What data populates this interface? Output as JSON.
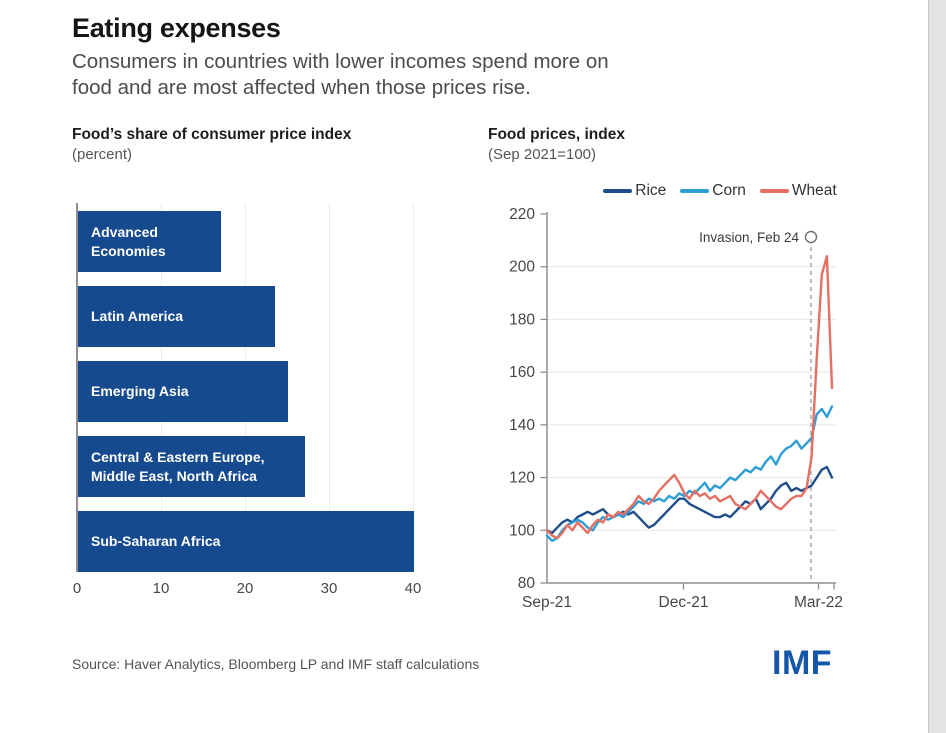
{
  "page": {
    "title": "Eating expenses",
    "subtitle_lines": [
      "Consumers in countries with lower incomes spend more on",
      "food and are most affected when those prices rise."
    ],
    "source": "Source: Haver Analytics, Bloomberg LP and IMF staff calculations",
    "logo_text": "IMF"
  },
  "colors": {
    "bar_blue": "#164a8f",
    "rice": "#1f4e8a",
    "corn": "#2d9dd6",
    "wheat": "#e56f62",
    "grid": "#e7e7e7",
    "axis": "#8f8f8f",
    "dashed": "#9b9b9b",
    "tick_text": "#474747",
    "annotation_text": "#3a3a3a",
    "logo_blue": "#1457a8",
    "gutter": "#e3e3e4"
  },
  "chart_data": [
    {
      "type": "bar",
      "title": "Food’s share of consumer price index",
      "subtitle": "(percent)",
      "orientation": "horizontal",
      "categories": [
        "Advanced Economies",
        "Latin America",
        "Emerging Asia",
        "Central & Eastern Europe, Middle East, North Africa",
        "Sub-Saharan Africa"
      ],
      "labels_lines": [
        [
          "Advanced",
          "Economies"
        ],
        [
          "Latin America"
        ],
        [
          "Emerging Asia"
        ],
        [
          "Central & Eastern Europe,",
          "Middle East, North Africa"
        ],
        [
          "Sub-Saharan Africa"
        ]
      ],
      "values": [
        17,
        23.5,
        25,
        27,
        40
      ],
      "xlim": [
        0,
        40
      ],
      "x_ticks": [
        0,
        10,
        20,
        30,
        40
      ],
      "grid": true,
      "bar_color_key": "bar_blue"
    },
    {
      "type": "line",
      "title": "Food prices, index",
      "subtitle": "(Sep 2021=100)",
      "ylim": [
        80,
        220
      ],
      "y_ticks": [
        220,
        200,
        180,
        160,
        140,
        120,
        100,
        80
      ],
      "grid_y": [
        100,
        120,
        140,
        160,
        180,
        200
      ],
      "x_total_days": 190,
      "x_ticks": [
        {
          "label": "Sep-21",
          "day": 0
        },
        {
          "label": "Dec-21",
          "day": 91
        },
        {
          "label": "Mar-22",
          "day": 181
        }
      ],
      "annotation": {
        "label": "Invasion, Feb 24",
        "day": 176
      },
      "legend_position": "top",
      "series": [
        {
          "name": "Rice",
          "color_key": "rice",
          "values": [
            100,
            99,
            101,
            103,
            104,
            103,
            105,
            106,
            107,
            106,
            107,
            108,
            106,
            105,
            106,
            107,
            106,
            107,
            105,
            103,
            101,
            102,
            104,
            106,
            108,
            110,
            112,
            112,
            110,
            109,
            108,
            107,
            106,
            105,
            105,
            106,
            105,
            107,
            109,
            111,
            110,
            112,
            108,
            110,
            112,
            115,
            117,
            118,
            115,
            116,
            115,
            116,
            117,
            120,
            123,
            124,
            120
          ]
        },
        {
          "name": "Corn",
          "color_key": "corn",
          "values": [
            98,
            96,
            97,
            100,
            102,
            103,
            104,
            103,
            101,
            100,
            103,
            105,
            104,
            105,
            106,
            105,
            107,
            109,
            111,
            110,
            112,
            111,
            112,
            111,
            113,
            112,
            114,
            113,
            115,
            114,
            116,
            118,
            115,
            117,
            116,
            118,
            120,
            119,
            121,
            123,
            122,
            124,
            123,
            126,
            128,
            125,
            129,
            131,
            132,
            134,
            131,
            133,
            135,
            144,
            146,
            143,
            147
          ]
        },
        {
          "name": "Wheat",
          "color_key": "wheat",
          "values": [
            100,
            98,
            97,
            99,
            102,
            100,
            103,
            101,
            99,
            102,
            104,
            103,
            106,
            105,
            107,
            106,
            108,
            110,
            113,
            111,
            110,
            112,
            115,
            117,
            119,
            121,
            118,
            114,
            112,
            115,
            113,
            114,
            112,
            113,
            111,
            112,
            113,
            110,
            109,
            108,
            110,
            112,
            115,
            113,
            111,
            109,
            108,
            110,
            112,
            113,
            113,
            116,
            128,
            165,
            197,
            204,
            154
          ]
        }
      ]
    }
  ]
}
